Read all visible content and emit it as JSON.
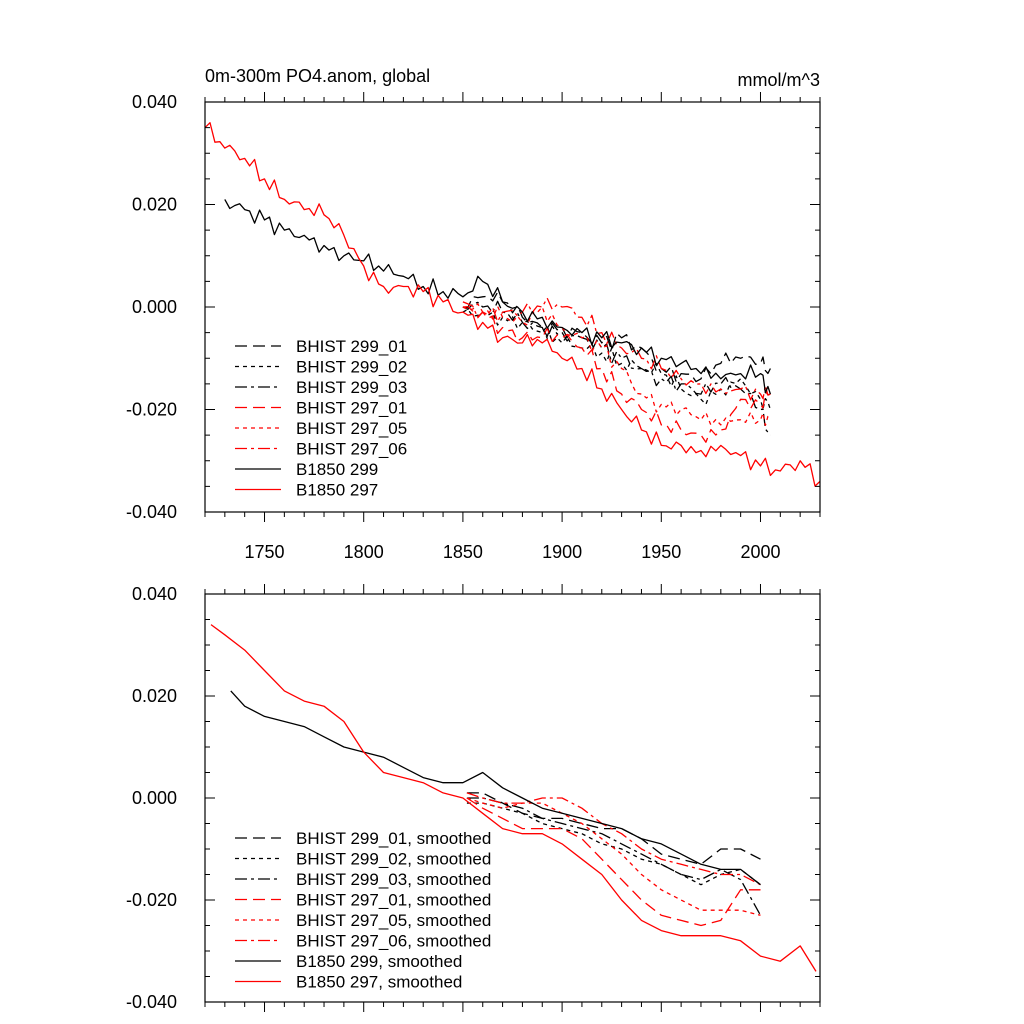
{
  "chart_data": [
    {
      "type": "line",
      "title": "0m-300m PO4.anom, global",
      "units": "mmol/m^3",
      "xlim": [
        1720,
        2030
      ],
      "ylim": [
        -0.04,
        0.04
      ],
      "yticks": [
        -0.04,
        -0.02,
        0.0,
        0.02,
        0.04
      ],
      "ytick_labels": [
        "-0.040",
        "-0.020",
        "0.000",
        "0.020",
        "0.040"
      ],
      "xticks": [
        1750,
        1800,
        1850,
        1900,
        1950,
        2000
      ],
      "xtick_labels": [
        "1750",
        "1800",
        "1850",
        "1900",
        "1950",
        "2000"
      ],
      "show_xtick_labels": true,
      "series": [
        {
          "name": "BHIST 299_01",
          "color": "#000000",
          "dash": "dash",
          "x": [
            1850,
            1860,
            1870,
            1880,
            1890,
            1900,
            1910,
            1920,
            1930,
            1940,
            1950,
            1960,
            1970,
            1980,
            1990,
            2000,
            2005
          ],
          "values": [
            0.0,
            0.002,
            0.001,
            -0.002,
            -0.004,
            -0.004,
            -0.005,
            -0.007,
            -0.006,
            -0.008,
            -0.012,
            -0.013,
            -0.014,
            -0.011,
            -0.01,
            -0.011,
            -0.012
          ]
        },
        {
          "name": "BHIST 299_02",
          "color": "#000000",
          "dash": "dot",
          "x": [
            1850,
            1860,
            1870,
            1880,
            1890,
            1900,
            1910,
            1920,
            1930,
            1940,
            1950,
            1960,
            1970,
            1980,
            1990,
            2000,
            2005
          ],
          "values": [
            -0.001,
            -0.001,
            -0.002,
            -0.003,
            -0.005,
            -0.007,
            -0.008,
            -0.009,
            -0.011,
            -0.012,
            -0.013,
            -0.016,
            -0.018,
            -0.016,
            -0.014,
            -0.018,
            -0.02
          ]
        },
        {
          "name": "BHIST 299_03",
          "color": "#000000",
          "dash": "dashdot",
          "x": [
            1850,
            1860,
            1870,
            1880,
            1890,
            1900,
            1910,
            1920,
            1930,
            1940,
            1950,
            1960,
            1970,
            1980,
            1990,
            2000,
            2005
          ],
          "values": [
            0.0,
            0.0,
            -0.001,
            -0.003,
            -0.004,
            -0.005,
            -0.006,
            -0.008,
            -0.01,
            -0.012,
            -0.014,
            -0.015,
            -0.017,
            -0.015,
            -0.016,
            -0.02,
            -0.025
          ]
        },
        {
          "name": "BHIST 297_01",
          "color": "#ff0000",
          "dash": "dash",
          "x": [
            1850,
            1860,
            1870,
            1880,
            1890,
            1900,
            1910,
            1920,
            1930,
            1940,
            1950,
            1960,
            1970,
            1980,
            1990,
            2000,
            2005
          ],
          "values": [
            0.0,
            -0.001,
            -0.004,
            -0.006,
            -0.006,
            -0.006,
            -0.008,
            -0.012,
            -0.017,
            -0.02,
            -0.023,
            -0.024,
            -0.025,
            -0.024,
            -0.018,
            -0.019,
            -0.017
          ]
        },
        {
          "name": "BHIST 297_05",
          "color": "#ff0000",
          "dash": "dot",
          "x": [
            1850,
            1860,
            1870,
            1880,
            1890,
            1900,
            1910,
            1920,
            1930,
            1940,
            1950,
            1960,
            1970,
            1980,
            1990,
            2000,
            2005
          ],
          "values": [
            0.0,
            -0.001,
            -0.002,
            -0.003,
            0.0,
            -0.004,
            -0.006,
            -0.008,
            -0.012,
            -0.017,
            -0.019,
            -0.02,
            -0.022,
            -0.023,
            -0.022,
            -0.022,
            -0.021
          ]
        },
        {
          "name": "BHIST 297_06",
          "color": "#ff0000",
          "dash": "dashdot",
          "x": [
            1850,
            1860,
            1870,
            1880,
            1890,
            1900,
            1910,
            1920,
            1930,
            1940,
            1950,
            1960,
            1970,
            1980,
            1990,
            2000,
            2005
          ],
          "values": [
            0.001,
            -0.001,
            -0.001,
            -0.001,
            0.0,
            0.0,
            -0.002,
            -0.005,
            -0.008,
            -0.01,
            -0.012,
            -0.014,
            -0.015,
            -0.016,
            -0.016,
            -0.017,
            -0.017
          ]
        },
        {
          "name": "B1850 299",
          "color": "#000000",
          "dash": "solid",
          "x": [
            1730,
            1740,
            1750,
            1760,
            1770,
            1780,
            1790,
            1800,
            1810,
            1820,
            1830,
            1840,
            1850,
            1860,
            1870,
            1880,
            1890,
            1900,
            1910,
            1920,
            1930,
            1940,
            1950,
            1960,
            1970,
            1980,
            1990,
            2000,
            2005
          ],
          "values": [
            0.021,
            0.019,
            0.017,
            0.015,
            0.014,
            0.012,
            0.01,
            0.009,
            0.007,
            0.006,
            0.004,
            0.003,
            0.002,
            0.005,
            0.001,
            -0.001,
            -0.002,
            -0.004,
            -0.005,
            -0.006,
            -0.007,
            -0.008,
            -0.01,
            -0.011,
            -0.013,
            -0.014,
            -0.013,
            -0.013,
            -0.017
          ]
        },
        {
          "name": "B1850 297",
          "color": "#ff0000",
          "dash": "solid",
          "x": [
            1720,
            1730,
            1740,
            1750,
            1760,
            1770,
            1780,
            1790,
            1800,
            1810,
            1820,
            1830,
            1840,
            1850,
            1860,
            1870,
            1880,
            1890,
            1900,
            1910,
            1920,
            1930,
            1940,
            1950,
            1960,
            1970,
            1980,
            1990,
            2000,
            2010,
            2020,
            2030
          ],
          "values": [
            0.035,
            0.031,
            0.029,
            0.025,
            0.021,
            0.019,
            0.018,
            0.014,
            0.008,
            0.004,
            0.004,
            0.003,
            0.001,
            -0.001,
            -0.003,
            -0.006,
            -0.007,
            -0.007,
            -0.01,
            -0.012,
            -0.016,
            -0.02,
            -0.024,
            -0.027,
            -0.027,
            -0.028,
            -0.027,
            -0.029,
            -0.031,
            -0.032,
            -0.03,
            -0.034
          ]
        }
      ]
    },
    {
      "type": "line",
      "title": "",
      "units": "",
      "xlim": [
        1720,
        2030
      ],
      "ylim": [
        -0.04,
        0.04
      ],
      "yticks": [
        -0.04,
        -0.02,
        0.0,
        0.02,
        0.04
      ],
      "ytick_labels": [
        "-0.040",
        "-0.020",
        "0.000",
        "0.020",
        "0.040"
      ],
      "xticks": [
        1750,
        1800,
        1850,
        1900,
        1950,
        2000
      ],
      "xtick_labels": [],
      "show_xtick_labels": false,
      "series": [
        {
          "name": "BHIST 299_01, smoothed",
          "color": "#000000",
          "dash": "dash",
          "x": [
            1852,
            1860,
            1870,
            1880,
            1890,
            1900,
            1910,
            1920,
            1930,
            1940,
            1950,
            1960,
            1970,
            1980,
            1990,
            2000
          ],
          "values": [
            0.001,
            0.001,
            -0.001,
            -0.003,
            -0.004,
            -0.004,
            -0.005,
            -0.006,
            -0.006,
            -0.008,
            -0.011,
            -0.012,
            -0.013,
            -0.01,
            -0.01,
            -0.012
          ]
        },
        {
          "name": "BHIST 299_02, smoothed",
          "color": "#000000",
          "dash": "dot",
          "x": [
            1852,
            1860,
            1870,
            1880,
            1890,
            1900,
            1910,
            1920,
            1930,
            1940,
            1950,
            1960,
            1970,
            1980,
            1990,
            2000
          ],
          "values": [
            -0.001,
            -0.001,
            -0.002,
            -0.003,
            -0.005,
            -0.006,
            -0.007,
            -0.009,
            -0.01,
            -0.012,
            -0.013,
            -0.015,
            -0.017,
            -0.015,
            -0.014,
            -0.017
          ]
        },
        {
          "name": "BHIST 299_03, smoothed",
          "color": "#000000",
          "dash": "dashdot",
          "x": [
            1852,
            1860,
            1870,
            1880,
            1890,
            1900,
            1910,
            1920,
            1930,
            1940,
            1950,
            1960,
            1970,
            1980,
            1990,
            2000
          ],
          "values": [
            0.0,
            0.0,
            -0.001,
            -0.002,
            -0.004,
            -0.005,
            -0.006,
            -0.007,
            -0.009,
            -0.011,
            -0.013,
            -0.015,
            -0.016,
            -0.014,
            -0.016,
            -0.023
          ]
        },
        {
          "name": "BHIST 297_01, smoothed",
          "color": "#ff0000",
          "dash": "dash",
          "x": [
            1852,
            1860,
            1870,
            1880,
            1890,
            1900,
            1910,
            1920,
            1930,
            1940,
            1950,
            1960,
            1970,
            1980,
            1990,
            2000
          ],
          "values": [
            0.0,
            -0.002,
            -0.004,
            -0.006,
            -0.006,
            -0.006,
            -0.008,
            -0.012,
            -0.016,
            -0.02,
            -0.023,
            -0.024,
            -0.025,
            -0.024,
            -0.018,
            -0.018
          ]
        },
        {
          "name": "BHIST 297_05, smoothed",
          "color": "#ff0000",
          "dash": "dot",
          "x": [
            1852,
            1860,
            1870,
            1880,
            1890,
            1900,
            1910,
            1920,
            1930,
            1940,
            1950,
            1960,
            1970,
            1980,
            1990,
            2000
          ],
          "values": [
            0.0,
            -0.001,
            -0.002,
            -0.001,
            -0.001,
            -0.003,
            -0.005,
            -0.008,
            -0.011,
            -0.015,
            -0.018,
            -0.02,
            -0.022,
            -0.022,
            -0.022,
            -0.023
          ]
        },
        {
          "name": "BHIST 297_06, smoothed",
          "color": "#ff0000",
          "dash": "dashdot",
          "x": [
            1852,
            1860,
            1870,
            1880,
            1890,
            1900,
            1910,
            1920,
            1930,
            1940,
            1950,
            1960,
            1970,
            1980,
            1990,
            2000
          ],
          "values": [
            0.001,
            0.0,
            -0.001,
            -0.001,
            0.0,
            0.0,
            -0.002,
            -0.005,
            -0.007,
            -0.01,
            -0.012,
            -0.013,
            -0.014,
            -0.015,
            -0.015,
            -0.017
          ]
        },
        {
          "name": "B1850 299, smoothed",
          "color": "#000000",
          "dash": "solid",
          "x": [
            1733,
            1740,
            1750,
            1760,
            1770,
            1780,
            1790,
            1800,
            1810,
            1820,
            1830,
            1840,
            1850,
            1860,
            1870,
            1880,
            1890,
            1900,
            1910,
            1920,
            1930,
            1940,
            1950,
            1960,
            1970,
            1980,
            1990,
            2000
          ],
          "values": [
            0.021,
            0.018,
            0.016,
            0.015,
            0.014,
            0.012,
            0.01,
            0.009,
            0.008,
            0.006,
            0.004,
            0.003,
            0.003,
            0.005,
            0.002,
            0.0,
            -0.002,
            -0.003,
            -0.004,
            -0.005,
            -0.006,
            -0.008,
            -0.009,
            -0.011,
            -0.013,
            -0.014,
            -0.014,
            -0.017
          ]
        },
        {
          "name": "B1850 297, smoothed",
          "color": "#ff0000",
          "dash": "solid",
          "x": [
            1723,
            1730,
            1740,
            1750,
            1760,
            1770,
            1780,
            1790,
            1800,
            1810,
            1820,
            1830,
            1840,
            1850,
            1860,
            1870,
            1880,
            1890,
            1900,
            1910,
            1920,
            1930,
            1940,
            1950,
            1960,
            1970,
            1980,
            1990,
            2000,
            2010,
            2020,
            2028
          ],
          "values": [
            0.034,
            0.032,
            0.029,
            0.025,
            0.021,
            0.019,
            0.018,
            0.015,
            0.009,
            0.005,
            0.004,
            0.003,
            0.001,
            0.0,
            -0.003,
            -0.006,
            -0.007,
            -0.007,
            -0.009,
            -0.012,
            -0.015,
            -0.02,
            -0.024,
            -0.026,
            -0.027,
            -0.027,
            -0.027,
            -0.028,
            -0.031,
            -0.032,
            -0.029,
            -0.034
          ]
        }
      ]
    }
  ]
}
